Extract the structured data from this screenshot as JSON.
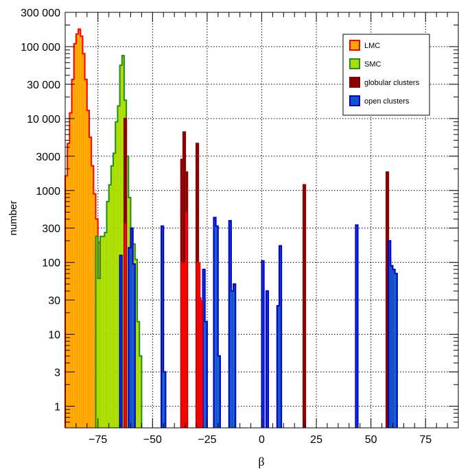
{
  "chart_data": {
    "type": "histogram",
    "title": "",
    "xlabel": "β",
    "ylabel": "number",
    "xlim": [
      -90,
      90
    ],
    "ylim": [
      0.5,
      300000
    ],
    "yscale": "log",
    "grid": true,
    "bin_width": 1,
    "x_ticks": [
      -75,
      -50,
      -25,
      0,
      25,
      50,
      75
    ],
    "x_tick_labels": [
      "−75",
      "−50",
      "−25",
      "0",
      "25",
      "50",
      "75"
    ],
    "y_ticks": [
      1,
      3,
      10,
      30,
      100,
      300,
      1000,
      3000,
      10000,
      30000,
      100000,
      300000
    ],
    "y_tick_labels": [
      "1",
      "3",
      "10",
      "30",
      "100",
      "300",
      "1000",
      "3000",
      "10 000",
      "30 000",
      "100 000",
      "300 000"
    ],
    "legend_position": "top-right",
    "series": [
      {
        "name": "LMC",
        "fill": "#ffa500",
        "stroke": "#ff0000",
        "bins": [
          [
            -90,
            1600
          ],
          [
            -89,
            4500
          ],
          [
            -88,
            12000
          ],
          [
            -87,
            35000
          ],
          [
            -86,
            110000
          ],
          [
            -85,
            150000
          ],
          [
            -84,
            175000
          ],
          [
            -83,
            140000
          ],
          [
            -82,
            80000
          ],
          [
            -81,
            35000
          ],
          [
            -80,
            13000
          ],
          [
            -79,
            5500
          ],
          [
            -78,
            2200
          ],
          [
            -77,
            900
          ],
          [
            -76,
            400
          ],
          [
            -75,
            190
          ]
        ]
      },
      {
        "name": "SMC",
        "fill": "#aadd00",
        "stroke": "#228b22",
        "bins": [
          [
            -76,
            230
          ],
          [
            -75,
            60
          ],
          [
            -74,
            230
          ],
          [
            -73,
            230
          ],
          [
            -72,
            260
          ],
          [
            -71,
            700
          ],
          [
            -70,
            1200
          ],
          [
            -69,
            2200
          ],
          [
            -68,
            3300
          ],
          [
            -67,
            9000
          ],
          [
            -66,
            15000
          ],
          [
            -65,
            55000
          ],
          [
            -64,
            75000
          ],
          [
            -63,
            18000
          ],
          [
            -62,
            3000
          ],
          [
            -61,
            800
          ],
          [
            -60,
            280
          ],
          [
            -59,
            180
          ],
          [
            -58,
            110
          ],
          [
            -57,
            15
          ],
          [
            -56,
            5
          ]
        ]
      },
      {
        "name": "globular clusters",
        "fill": "#8b0000",
        "stroke": "#8b0000",
        "bins": [
          [
            -63,
            10000
          ],
          [
            -37,
            2700
          ],
          [
            -36,
            6500
          ],
          [
            -35,
            1800
          ],
          [
            -30,
            4500
          ],
          [
            -29,
            32
          ],
          [
            19,
            1200
          ],
          [
            57,
            1800
          ],
          [
            58,
            110
          ]
        ]
      },
      {
        "name": "open clusters",
        "fill": "#1155cc",
        "stroke": "#0000cc",
        "bins": [
          [
            -65,
            125
          ],
          [
            -61,
            160
          ],
          [
            -60,
            300
          ],
          [
            -59,
            95
          ],
          [
            -46,
            320
          ],
          [
            -45,
            3
          ],
          [
            -29,
            32
          ],
          [
            -27,
            80
          ],
          [
            -26,
            15
          ],
          [
            -22,
            420
          ],
          [
            -21,
            320
          ],
          [
            -20,
            5
          ],
          [
            -15,
            380
          ],
          [
            -14,
            40
          ],
          [
            -13,
            50
          ],
          [
            0,
            105
          ],
          [
            2,
            40
          ],
          [
            7,
            25
          ],
          [
            8,
            170
          ],
          [
            43,
            330
          ],
          [
            58,
            200
          ],
          [
            59,
            90
          ],
          [
            60,
            80
          ],
          [
            61,
            70
          ]
        ]
      }
    ],
    "overlays": [
      {
        "name": "globular clusters",
        "fill": "#ff0000",
        "bins": [
          [
            -63,
            350
          ],
          [
            -37,
            100
          ],
          [
            -36,
            100
          ],
          [
            -35,
            500
          ],
          [
            -30,
            100
          ],
          [
            -29,
            100
          ],
          [
            -28,
            30
          ]
        ]
      }
    ]
  }
}
